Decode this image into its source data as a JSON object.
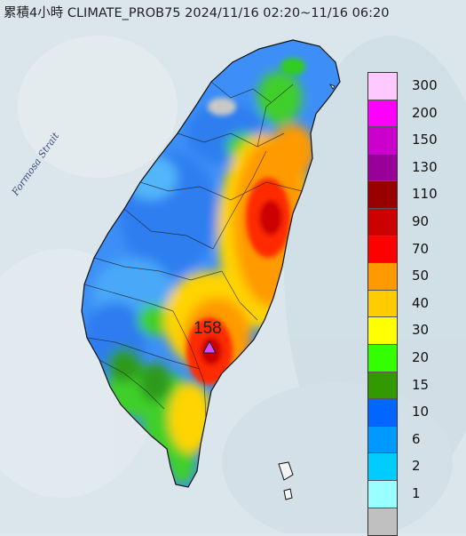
{
  "title": "累積4小時 CLIMATE_PROB75 2024/11/16 02:20~11/16 06:20",
  "region_label": "Formosa Strait",
  "peak_value": "158",
  "legend": [
    {
      "label": "300",
      "color": "#ffc8ff"
    },
    {
      "label": "200",
      "color": "#ff00ff"
    },
    {
      "label": "150",
      "color": "#cc00cc"
    },
    {
      "label": "130",
      "color": "#990099"
    },
    {
      "label": "110",
      "color": "#990000"
    },
    {
      "label": "90",
      "color": "#cc0000"
    },
    {
      "label": "70",
      "color": "#ff0000"
    },
    {
      "label": "50",
      "color": "#ff9900"
    },
    {
      "label": "40",
      "color": "#ffcc00"
    },
    {
      "label": "30",
      "color": "#ffff00"
    },
    {
      "label": "20",
      "color": "#33ff00"
    },
    {
      "label": "15",
      "color": "#339900"
    },
    {
      "label": "10",
      "color": "#0066ff"
    },
    {
      "label": "6",
      "color": "#0099ff"
    },
    {
      "label": "2",
      "color": "#00ccff"
    },
    {
      "label": "1",
      "color": "#99ffff"
    },
    {
      "label": "",
      "color": "#c0c0c0"
    }
  ]
}
